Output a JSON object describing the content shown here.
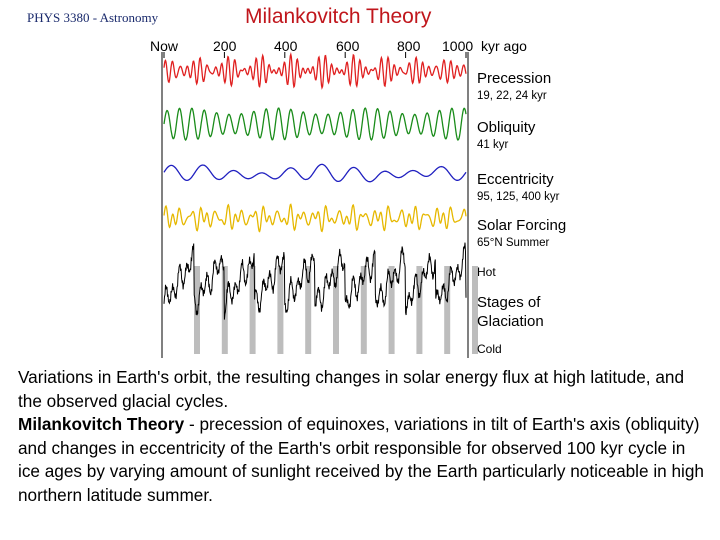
{
  "header": {
    "course": "PHYS 3380 - Astronomy",
    "title": "Milankovitch Theory"
  },
  "figure": {
    "axis_labels": [
      "Now",
      "200",
      "400",
      "600",
      "800",
      "1000"
    ],
    "axis_unit": "kyr ago",
    "rows": [
      {
        "name": "Precession",
        "sub": "19, 22, 24 kyr",
        "color": "#e02020"
      },
      {
        "name": "Obliquity",
        "sub": "41 kyr",
        "color": "#1a8c1a"
      },
      {
        "name": "Eccentricity",
        "sub": "95, 125, 400 kyr",
        "color": "#2020c0"
      },
      {
        "name": "Solar Forcing",
        "sub": "65°N Summer",
        "color": "#e6b800"
      },
      {
        "name": "Stages of Glaciation",
        "sub": "",
        "color": "#000000"
      }
    ],
    "stages_of_glaciation_lines": [
      "Stages of",
      "Glaciation"
    ],
    "hot_label": "Hot",
    "cold_label": "Cold"
  },
  "caption": {
    "para1": "Variations in Earth's orbit, the resulting changes in solar energy flux at high latitude, and the observed glacial cycles.",
    "para2_bold": "Milankovitch Theory",
    "para2_rest": " - precession of equinoxes, variations in tilt of Earth's axis (obliquity) and changes in eccentricity of the Earth's orbit responsible for observed 100 kyr cycle in ice ages by varying amount of sunlight received by the Earth particularly noticeable in high northern latitude summer."
  }
}
